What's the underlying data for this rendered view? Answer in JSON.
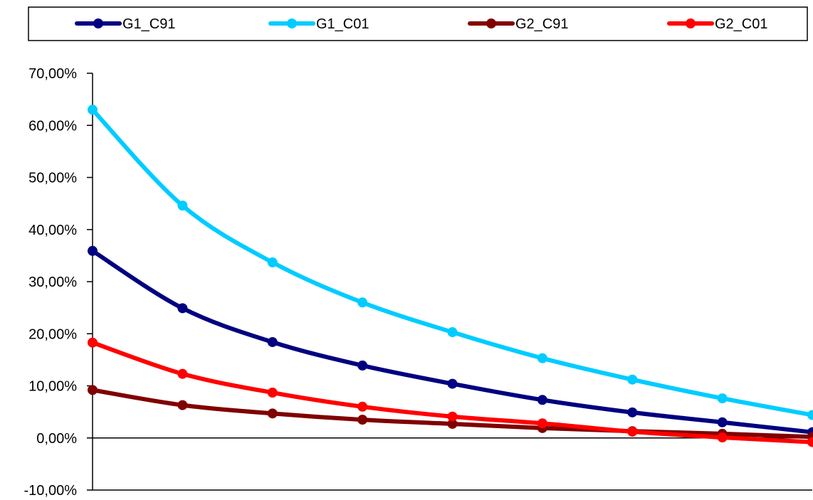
{
  "chart_data": {
    "type": "line",
    "title": "",
    "xlabel": "",
    "ylabel": "",
    "x": [
      0,
      1,
      2,
      3,
      4,
      5,
      6,
      7,
      8
    ],
    "ylim": [
      -0.1,
      0.7
    ],
    "yticks": [
      -0.1,
      0.0,
      0.1,
      0.2,
      0.3,
      0.4,
      0.5,
      0.6,
      0.7
    ],
    "ytick_labels": [
      "-10,00%",
      "0,00%",
      "10,00%",
      "20,00%",
      "30,00%",
      "40,00%",
      "50,00%",
      "60,00%",
      "70,00%"
    ],
    "grid": false,
    "legend_position": "top",
    "series": [
      {
        "name": "G1_C91",
        "color": "#000080",
        "values": [
          0.359,
          0.249,
          0.184,
          0.139,
          0.104,
          0.073,
          0.049,
          0.03,
          0.011
        ]
      },
      {
        "name": "G1_C01",
        "color": "#00CCFF",
        "values": [
          0.63,
          0.446,
          0.337,
          0.26,
          0.203,
          0.153,
          0.112,
          0.076,
          0.044
        ]
      },
      {
        "name": "G2_C91",
        "color": "#800000",
        "values": [
          0.092,
          0.063,
          0.047,
          0.035,
          0.027,
          0.019,
          0.013,
          0.008,
          0.002
        ]
      },
      {
        "name": "G2_C01",
        "color": "#FF0000",
        "values": [
          0.183,
          0.123,
          0.087,
          0.06,
          0.041,
          0.028,
          0.012,
          0.001,
          -0.008
        ]
      }
    ]
  }
}
